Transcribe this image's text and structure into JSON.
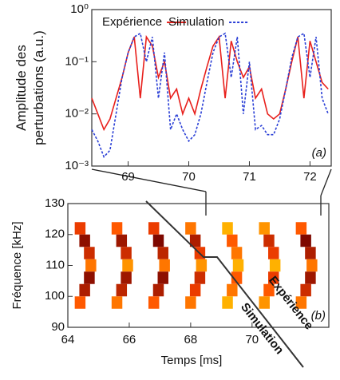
{
  "chart_data": [
    {
      "type": "line",
      "label": "(a)",
      "ylabel": [
        "Amplitude des",
        "perturbations (a.u.)"
      ],
      "log_y": true,
      "xlim": [
        68.4,
        72.35
      ],
      "xticks": [
        69,
        70,
        71,
        72
      ],
      "ylim": [
        0.001,
        1
      ],
      "yticks": [
        {
          "value": 0.001,
          "label": "10⁻³"
        },
        {
          "value": 0.01,
          "label": "10⁻²"
        },
        {
          "value": 0.1,
          "label": "10⁻¹"
        },
        {
          "value": 1,
          "label": "10⁰"
        }
      ],
      "x": [
        68.4,
        68.5,
        68.6,
        68.7,
        68.8,
        68.9,
        69.0,
        69.1,
        69.2,
        69.3,
        69.4,
        69.5,
        69.6,
        69.7,
        69.8,
        69.9,
        70.0,
        70.1,
        70.2,
        70.3,
        70.4,
        70.5,
        70.6,
        70.7,
        70.8,
        70.9,
        71.0,
        71.1,
        71.2,
        71.3,
        71.4,
        71.5,
        71.6,
        71.7,
        71.8,
        71.9,
        72.0,
        72.1,
        72.2,
        72.3
      ],
      "series": [
        {
          "name": "Expérience",
          "color": "#e8201c",
          "dash": false,
          "values": [
            0.02,
            0.01,
            0.005,
            0.008,
            0.02,
            0.05,
            0.15,
            0.3,
            0.02,
            0.3,
            0.2,
            0.05,
            0.1,
            0.02,
            0.03,
            0.01,
            0.02,
            0.01,
            0.03,
            0.08,
            0.2,
            0.3,
            0.02,
            0.25,
            0.1,
            0.05,
            0.08,
            0.02,
            0.03,
            0.01,
            0.008,
            0.01,
            0.03,
            0.1,
            0.3,
            0.02,
            0.25,
            0.1,
            0.04,
            0.03
          ]
        },
        {
          "name": "Simulation",
          "color": "#2a3fd6",
          "dash": true,
          "values": [
            0.005,
            0.003,
            0.0015,
            0.002,
            0.01,
            0.05,
            0.15,
            0.3,
            0.35,
            0.1,
            0.3,
            0.02,
            0.15,
            0.005,
            0.01,
            0.005,
            0.003,
            0.004,
            0.01,
            0.04,
            0.15,
            0.3,
            0.35,
            0.05,
            0.3,
            0.01,
            0.1,
            0.005,
            0.006,
            0.004,
            0.004,
            0.008,
            0.03,
            0.12,
            0.3,
            0.35,
            0.05,
            0.3,
            0.02,
            0.01
          ]
        }
      ]
    },
    {
      "type": "heatmap",
      "label": "(b)",
      "xlabel": "Temps [ms]",
      "ylabel": "Fréquence  [kHz]",
      "xlim": [
        64,
        72.5
      ],
      "xticks": [
        64,
        66,
        68,
        70
      ],
      "ylim": [
        90,
        130
      ],
      "yticks": [
        90,
        100,
        110,
        120,
        130
      ],
      "annotations": [
        "Expérience",
        "Simulation"
      ],
      "x": [
        64.4,
        64.55,
        64.7,
        64.75,
        64.7,
        64.55,
        64.4,
        65.6,
        65.75,
        65.9,
        65.95,
        65.9,
        65.75,
        65.6,
        66.8,
        66.95,
        67.1,
        67.15,
        67.1,
        66.95,
        66.8,
        68.0,
        68.15,
        68.3,
        68.35,
        68.3,
        68.15,
        68.0,
        69.2,
        69.35,
        69.5,
        69.55,
        69.5,
        69.35,
        69.2,
        70.4,
        70.55,
        70.7,
        70.75,
        70.7,
        70.55,
        70.4,
        71.6,
        71.75,
        71.9,
        71.95,
        71.9,
        71.75,
        71.6
      ],
      "y": [
        122,
        118,
        114,
        110,
        106,
        102,
        98,
        122,
        118,
        114,
        110,
        106,
        102,
        98,
        122,
        118,
        114,
        110,
        106,
        102,
        98,
        122,
        118,
        114,
        110,
        106,
        102,
        98,
        122,
        118,
        114,
        110,
        106,
        102,
        98,
        122,
        118,
        114,
        110,
        106,
        102,
        98,
        122,
        118,
        114,
        110,
        106,
        102,
        98
      ],
      "values": [
        0.6,
        0.9,
        0.7,
        0.4,
        0.9,
        0.8,
        0.5,
        0.5,
        0.85,
        0.7,
        0.3,
        0.85,
        0.75,
        0.4,
        0.6,
        0.95,
        0.75,
        0.4,
        0.9,
        0.8,
        0.5,
        0.4,
        0.8,
        0.6,
        0.3,
        0.7,
        0.6,
        0.4,
        0.2,
        0.5,
        0.4,
        0.2,
        0.5,
        0.4,
        0.2,
        0.3,
        0.7,
        0.6,
        0.2,
        0.6,
        0.5,
        0.3,
        0.5,
        0.95,
        0.8,
        0.4,
        0.85,
        0.7,
        0.4
      ]
    }
  ]
}
